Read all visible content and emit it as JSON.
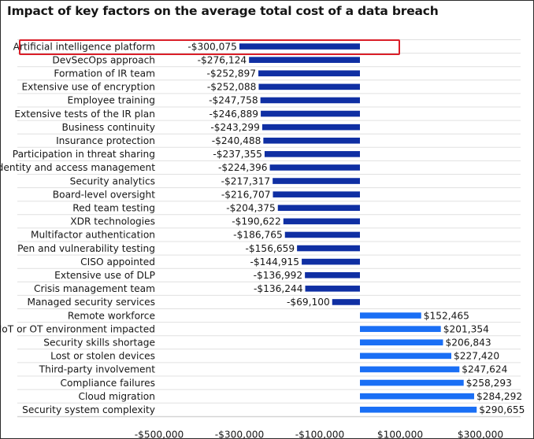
{
  "title": "Impact of key factors on the average total cost of a data breach",
  "chart_data": {
    "type": "bar",
    "orientation": "horizontal",
    "title": "Impact of key factors on the average total cost of a data breach",
    "xlabel": "",
    "ylabel": "",
    "xlim": [
      -500000,
      300000
    ],
    "x_ticks": [
      -500000,
      -300000,
      -100000,
      100000,
      300000
    ],
    "x_tick_labels": [
      "-$500,000",
      "-$300,000",
      "-$100,000",
      "$100,000",
      "$300,000"
    ],
    "grid": true,
    "highlighted_category": "Artificial intelligence platform",
    "colors": {
      "negative": "#0f2fa3",
      "positive": "#1a6ff5",
      "highlight_box": "#da1e28",
      "grid": "#e0e0e0"
    },
    "categories": [
      "Artificial intelligence platform",
      "DevSecOps approach",
      "Formation of IR team",
      "Extensive use of encryption",
      "Employee training",
      "Extensive tests of the IR plan",
      "Business continuity",
      "Insurance protection",
      "Participation in threat sharing",
      "Identity and access management",
      "Security analytics",
      "Board-level oversight",
      "Red team testing",
      "XDR technologies",
      "Multifactor authentication",
      "Pen and vulnerability testing",
      "CISO appointed",
      "Extensive use of DLP",
      "Crisis management team",
      "Managed security services",
      "Remote workforce",
      "IoT or OT environment impacted",
      "Security skills shortage",
      "Lost or stolen devices",
      "Third-party involvement",
      "Compliance failures",
      "Cloud migration",
      "Security system complexity"
    ],
    "values": [
      -300075,
      -276124,
      -252897,
      -252088,
      -247758,
      -246889,
      -243299,
      -240488,
      -237355,
      -224396,
      -217317,
      -216707,
      -204375,
      -190622,
      -186765,
      -156659,
      -144915,
      -136992,
      -136244,
      -69100,
      152465,
      201354,
      206843,
      227420,
      247624,
      258293,
      284292,
      290655
    ],
    "value_labels": [
      "-$300,075",
      "-$276,124",
      "-$252,897",
      "-$252,088",
      "-$247,758",
      "-$246,889",
      "-$243,299",
      "-$240,488",
      "-$237,355",
      "-$224,396",
      "-$217,317",
      "-$216,707",
      "-$204,375",
      "-$190,622",
      "-$186,765",
      "-$156,659",
      "-$144,915",
      "-$136,992",
      "-$136,244",
      "-$69,100",
      "$152,465",
      "$201,354",
      "$206,843",
      "$227,420",
      "$247,624",
      "$258,293",
      "$284,292",
      "$290,655"
    ]
  }
}
